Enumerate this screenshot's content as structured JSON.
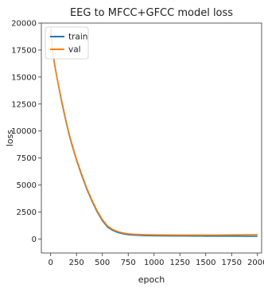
{
  "chart_data": {
    "type": "line",
    "title": "EEG to MFCC+GFCC model loss",
    "xlabel": "epoch",
    "ylabel": "loss",
    "xlim": [
      -90,
      2040
    ],
    "ylim": [
      -1300,
      20000
    ],
    "xticks": [
      0,
      250,
      500,
      750,
      1000,
      1250,
      1500,
      1750,
      2000
    ],
    "yticks": [
      0,
      2500,
      5000,
      7500,
      10000,
      12500,
      15000,
      17500,
      20000
    ],
    "grid": false,
    "legend_position": "top-left",
    "series": [
      {
        "name": "train",
        "color": "#1f77b4",
        "x": [
          0,
          20,
          40,
          60,
          80,
          100,
          125,
          150,
          175,
          200,
          250,
          300,
          350,
          400,
          450,
          500,
          550,
          600,
          650,
          700,
          750,
          800,
          900,
          1000,
          1100,
          1200,
          1300,
          1400,
          1500,
          1600,
          1700,
          1800,
          1900,
          2000
        ],
        "values": [
          19500,
          17300,
          16100,
          15000,
          14000,
          13000,
          11900,
          10800,
          9800,
          8900,
          7300,
          5900,
          4600,
          3500,
          2500,
          1700,
          1100,
          800,
          600,
          480,
          400,
          360,
          320,
          300,
          290,
          280,
          275,
          270,
          265,
          262,
          260,
          258,
          256,
          255
        ]
      },
      {
        "name": "val",
        "color": "#ff7f0e",
        "x": [
          0,
          20,
          40,
          60,
          80,
          100,
          125,
          150,
          175,
          200,
          250,
          300,
          350,
          400,
          450,
          500,
          550,
          600,
          650,
          700,
          750,
          800,
          900,
          1000,
          1100,
          1200,
          1300,
          1400,
          1500,
          1600,
          1700,
          1800,
          1900,
          2000
        ],
        "values": [
          19300,
          17200,
          16000,
          15000,
          14100,
          13100,
          12000,
          10900,
          9900,
          9000,
          7400,
          6000,
          4700,
          3600,
          2600,
          1800,
          1200,
          880,
          680,
          560,
          480,
          440,
          400,
          380,
          370,
          365,
          360,
          360,
          362,
          365,
          370,
          380,
          390,
          410
        ]
      }
    ]
  }
}
